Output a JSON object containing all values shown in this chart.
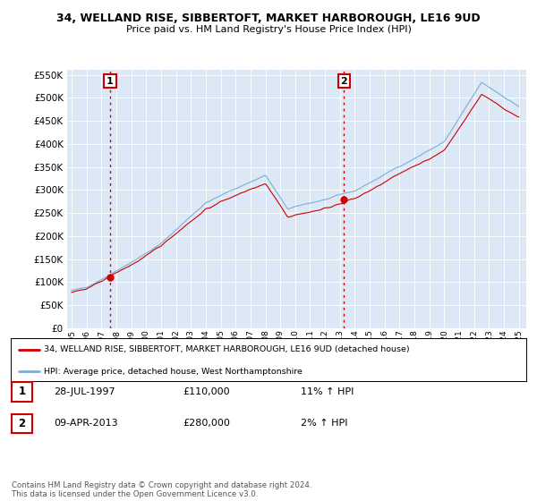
{
  "title": "34, WELLAND RISE, SIBBERTOFT, MARKET HARBOROUGH, LE16 9UD",
  "subtitle": "Price paid vs. HM Land Registry's House Price Index (HPI)",
  "legend_line1": "34, WELLAND RISE, SIBBERTOFT, MARKET HARBOROUGH, LE16 9UD (detached house)",
  "legend_line2": "HPI: Average price, detached house, West Northamptonshire",
  "annotation1_label": "1",
  "annotation1_date": "28-JUL-1997",
  "annotation1_price": "£110,000",
  "annotation1_hpi": "11% ↑ HPI",
  "annotation2_label": "2",
  "annotation2_date": "09-APR-2013",
  "annotation2_price": "£280,000",
  "annotation2_hpi": "2% ↑ HPI",
  "footer": "Contains HM Land Registry data © Crown copyright and database right 2024.\nThis data is licensed under the Open Government Licence v3.0.",
  "sale1_year": 1997.58,
  "sale1_price": 110000,
  "sale2_year": 2013.27,
  "sale2_price": 280000,
  "hpi_color": "#7bafd4",
  "price_color": "#cc0000",
  "dashed_line_color": "#cc0000",
  "background_color": "#dce8f5",
  "grid_color": "#ffffff",
  "ylim": [
    0,
    560000
  ],
  "xlim_start": 1994.7,
  "xlim_end": 2025.5
}
